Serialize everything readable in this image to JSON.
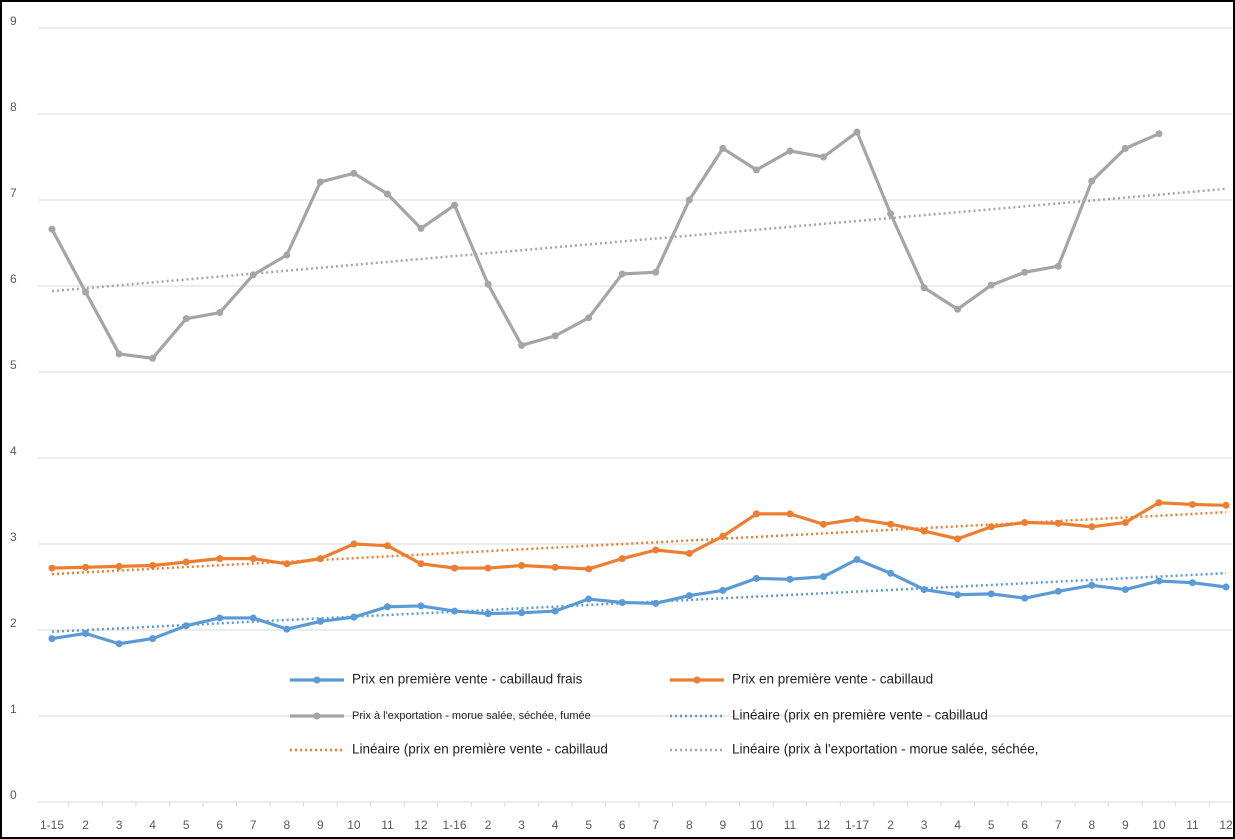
{
  "chart_data": {
    "type": "line",
    "categories": [
      "1-15",
      "2",
      "3",
      "4",
      "5",
      "6",
      "7",
      "8",
      "9",
      "10",
      "11",
      "12",
      "1-16",
      "2",
      "3",
      "4",
      "5",
      "6",
      "7",
      "8",
      "9",
      "10",
      "11",
      "12",
      "1-17",
      "2",
      "3",
      "4",
      "5",
      "6",
      "7",
      "8",
      "9",
      "10",
      "11",
      "12"
    ],
    "series": [
      {
        "name": "Prix en première vente - cabillaud frais",
        "color": "#5b9bd5",
        "values": [
          1.9,
          1.96,
          1.84,
          1.9,
          2.05,
          2.14,
          2.14,
          2.01,
          2.1,
          2.15,
          2.27,
          2.28,
          2.22,
          2.19,
          2.2,
          2.22,
          2.36,
          2.32,
          2.31,
          2.4,
          2.46,
          2.6,
          2.59,
          2.62,
          2.82,
          2.66,
          2.47,
          2.41,
          2.42,
          2.37,
          2.45,
          2.52,
          2.47,
          2.57,
          2.55,
          2.5
        ]
      },
      {
        "name": "Prix en première vente - cabillaud",
        "color": "#ed7d31",
        "values": [
          2.72,
          2.73,
          2.74,
          2.75,
          2.79,
          2.83,
          2.83,
          2.77,
          2.83,
          3.0,
          2.98,
          2.77,
          2.72,
          2.72,
          2.75,
          2.73,
          2.71,
          2.83,
          2.93,
          2.89,
          3.09,
          3.35,
          3.35,
          3.23,
          3.29,
          3.23,
          3.15,
          3.06,
          3.2,
          3.25,
          3.24,
          3.2,
          3.25,
          3.48,
          3.46,
          3.45
        ]
      },
      {
        "name": "Prix à l'exportation - morue salée, séchée, fumée",
        "color": "#a5a5a5",
        "values": [
          6.66,
          5.93,
          5.21,
          5.16,
          5.62,
          5.69,
          6.13,
          6.36,
          7.21,
          7.31,
          7.07,
          6.67,
          6.94,
          6.02,
          5.31,
          5.42,
          5.63,
          6.14,
          6.16,
          7.0,
          7.6,
          7.35,
          7.57,
          7.5,
          7.79,
          6.84,
          5.98,
          5.73,
          6.01,
          6.16,
          6.23,
          7.22,
          7.6,
          7.77,
          null,
          null
        ]
      }
    ],
    "trendlines": [
      {
        "name": "Linéaire (prix en première vente - cabillaud",
        "color": "#5b9bd5",
        "start": 1.98,
        "end": 2.66
      },
      {
        "name": "Linéaire (prix en première vente - cabillaud",
        "color": "#ed7d31",
        "start": 2.65,
        "end": 3.37
      },
      {
        "name": "Linéaire (prix à l'exportation - morue salée, séchée,",
        "color": "#a5a5a5",
        "start": 5.94,
        "end": 7.13
      }
    ],
    "ylim": [
      0,
      9
    ],
    "yticks": [
      0,
      1,
      2,
      3,
      4,
      5,
      6,
      7,
      8,
      9
    ],
    "grid": true
  }
}
